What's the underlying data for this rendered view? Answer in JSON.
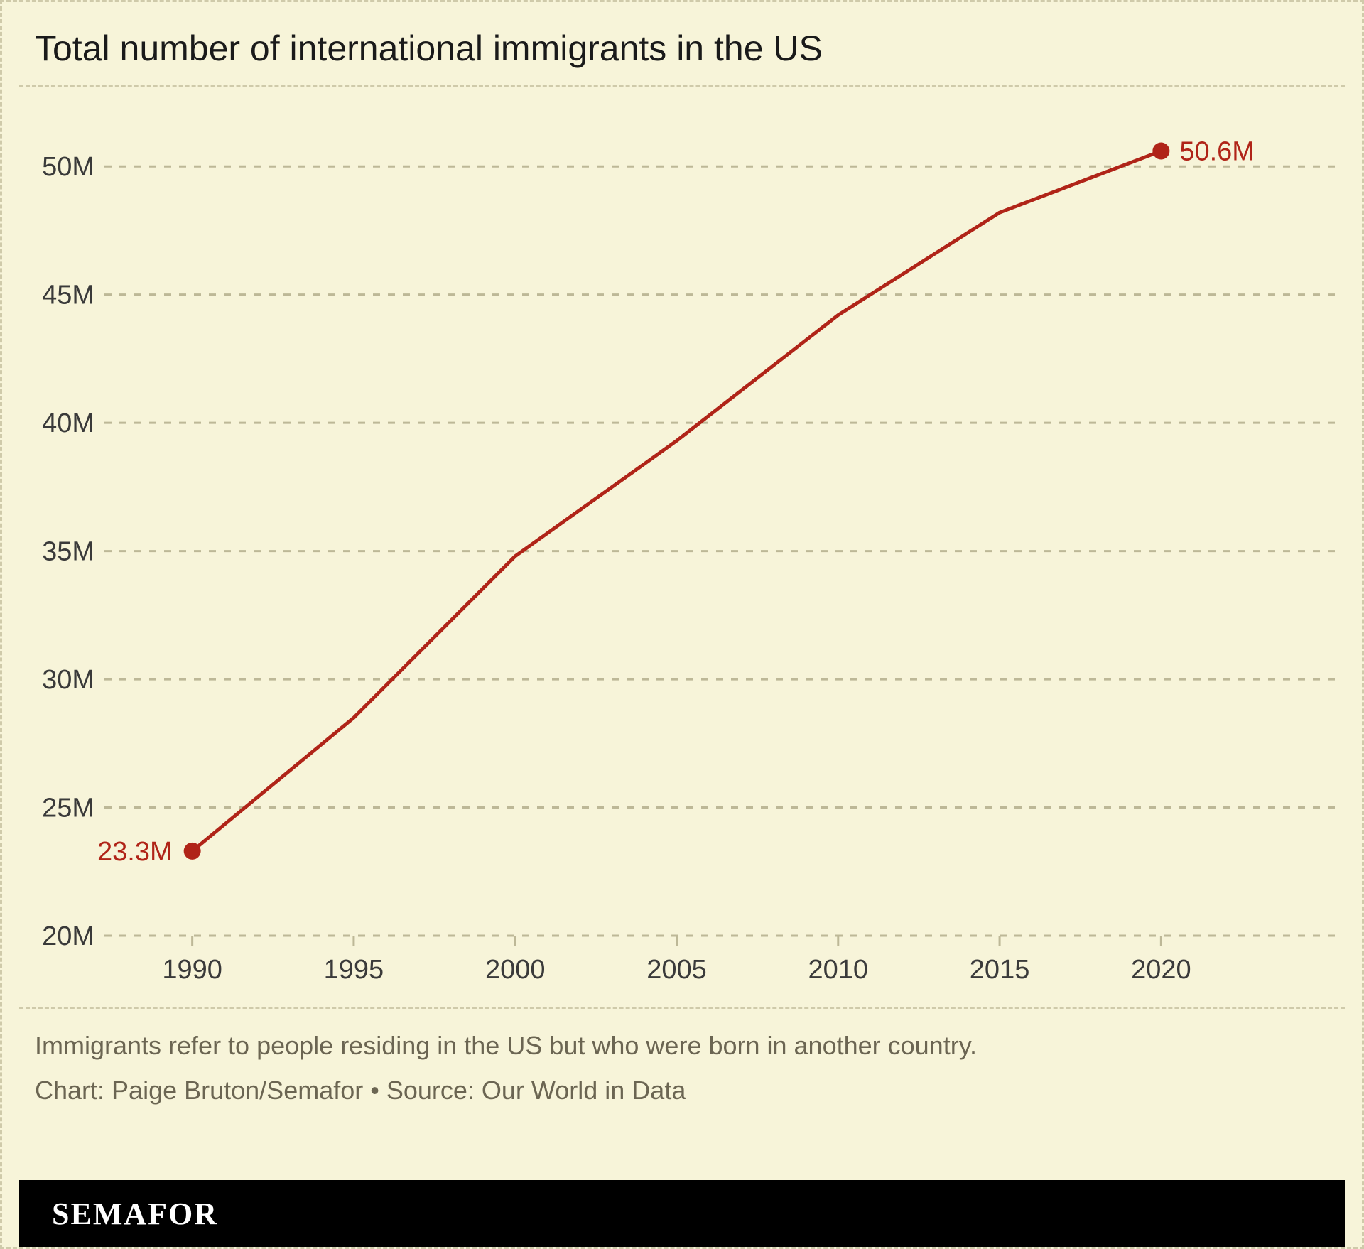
{
  "chart": {
    "type": "line",
    "title": "Total number of international immigrants in the US",
    "title_fontsize": 50,
    "title_color": "#1a1a1a",
    "background_color": "#f7f4d9",
    "outer_border_color": "#cfcaaa",
    "grid_color": "#bdb897",
    "axis_label_color": "#3a3a3a",
    "axis_fontsize": 38,
    "line_color": "#b02418",
    "line_width": 5,
    "endpoint_marker_color": "#b02418",
    "endpoint_marker_radius": 12,
    "endpoint_label_color": "#b02418",
    "endpoint_label_fontsize": 38,
    "x": {
      "min": 1987.5,
      "max": 2022.5,
      "ticks": [
        1990,
        1995,
        2000,
        2005,
        2010,
        2015,
        2020
      ],
      "tick_labels": [
        "1990",
        "1995",
        "2000",
        "2005",
        "2010",
        "2015",
        "2020"
      ]
    },
    "y": {
      "min": 20,
      "max": 52,
      "ticks": [
        20,
        25,
        30,
        35,
        40,
        45,
        50
      ],
      "tick_labels": [
        "20M",
        "25M",
        "30M",
        "35M",
        "40M",
        "45M",
        "50M"
      ]
    },
    "series": {
      "years": [
        1990,
        1995,
        2000,
        2005,
        2010,
        2015,
        2020
      ],
      "values": [
        23.3,
        28.5,
        34.8,
        39.3,
        44.2,
        48.2,
        50.6
      ]
    },
    "start_label": "23.3M",
    "end_label": "50.6M"
  },
  "footnotes": {
    "note": "Immigrants refer to people residing in the US but who were born in another country.",
    "attribution": "Chart: Paige Bruton/Semafor • Source: Our World in Data",
    "color": "#6b6552",
    "fontsize": 36
  },
  "brand": {
    "name": "SEMAFOR",
    "bar_bg": "#000000",
    "text_color": "#ffffff"
  }
}
